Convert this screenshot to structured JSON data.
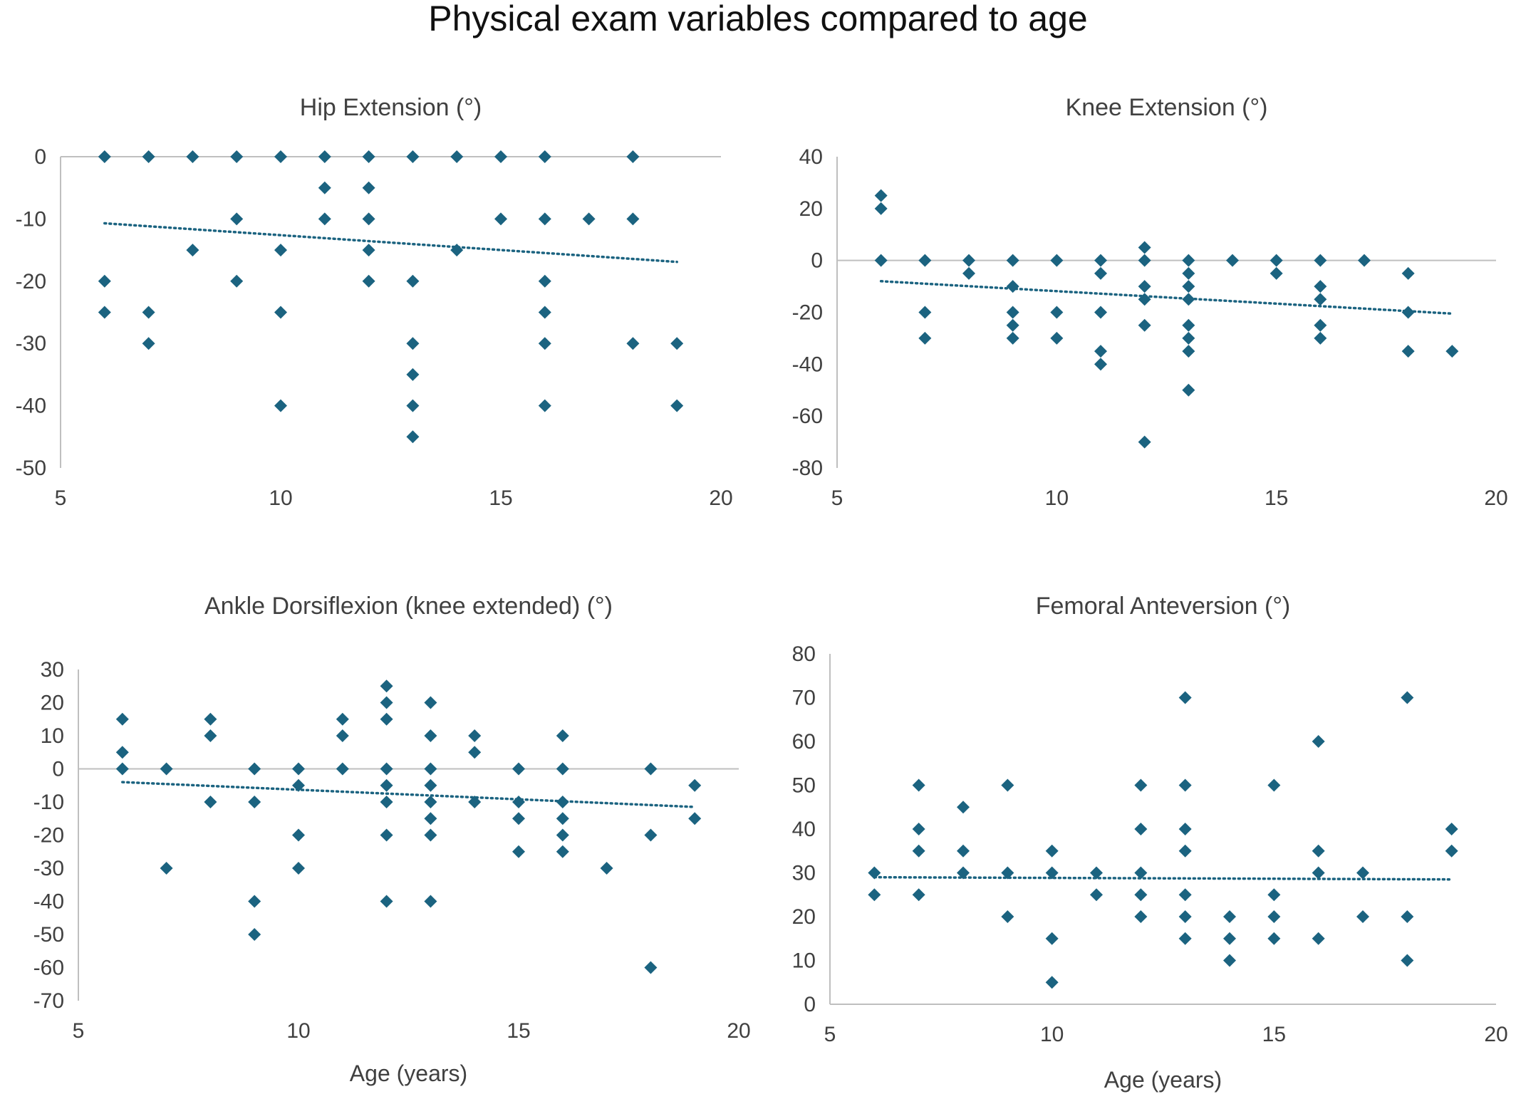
{
  "title": "Physical exam variables compared to age",
  "colors": {
    "marker": "#1b6380",
    "axis": "#bfbfbf",
    "text": "#404040"
  },
  "chart_data": [
    {
      "type": "scatter",
      "title": "Hip Extension (°)",
      "xlabel": "",
      "xlim": [
        5,
        20
      ],
      "xticks": [
        5,
        10,
        15,
        20
      ],
      "ylim": [
        -50,
        0
      ],
      "yticks": [
        0,
        -10,
        -20,
        -30,
        -40,
        -50
      ],
      "trendline": {
        "type": "linear",
        "x": [
          6,
          19
        ],
        "y": [
          -10.7,
          -16.9
        ]
      },
      "points": [
        [
          6,
          0
        ],
        [
          7,
          0
        ],
        [
          8,
          0
        ],
        [
          9,
          0
        ],
        [
          10,
          0
        ],
        [
          11,
          0
        ],
        [
          12,
          0
        ],
        [
          13,
          0
        ],
        [
          14,
          0
        ],
        [
          15,
          0
        ],
        [
          16,
          0
        ],
        [
          18,
          0
        ],
        [
          11,
          -5
        ],
        [
          12,
          -5
        ],
        [
          9,
          -10
        ],
        [
          11,
          -10
        ],
        [
          12,
          -10
        ],
        [
          15,
          -10
        ],
        [
          16,
          -10
        ],
        [
          17,
          -10
        ],
        [
          18,
          -10
        ],
        [
          8,
          -15
        ],
        [
          10,
          -15
        ],
        [
          12,
          -15
        ],
        [
          14,
          -15
        ],
        [
          6,
          -20
        ],
        [
          9,
          -20
        ],
        [
          12,
          -20
        ],
        [
          13,
          -20
        ],
        [
          16,
          -20
        ],
        [
          6,
          -25
        ],
        [
          7,
          -25
        ],
        [
          10,
          -25
        ],
        [
          16,
          -25
        ],
        [
          7,
          -30
        ],
        [
          13,
          -30
        ],
        [
          16,
          -30
        ],
        [
          18,
          -30
        ],
        [
          19,
          -30
        ],
        [
          13,
          -35
        ],
        [
          10,
          -40
        ],
        [
          13,
          -40
        ],
        [
          16,
          -40
        ],
        [
          19,
          -40
        ],
        [
          13,
          -45
        ]
      ]
    },
    {
      "type": "scatter",
      "title": "Knee Extension (°)",
      "xlabel": "",
      "xlim": [
        5,
        20
      ],
      "xticks": [
        5,
        10,
        15,
        20
      ],
      "ylim": [
        -80,
        40
      ],
      "yticks": [
        40,
        20,
        0,
        -20,
        -40,
        -60,
        -80
      ],
      "trendline": {
        "type": "linear",
        "x": [
          6,
          19
        ],
        "y": [
          -8,
          -20.5
        ]
      },
      "points": [
        [
          6,
          25
        ],
        [
          6,
          20
        ],
        [
          6,
          0
        ],
        [
          7,
          0
        ],
        [
          7,
          -20
        ],
        [
          7,
          -30
        ],
        [
          8,
          0
        ],
        [
          8,
          -5
        ],
        [
          9,
          0
        ],
        [
          9,
          -10
        ],
        [
          9,
          -20
        ],
        [
          9,
          -25
        ],
        [
          9,
          -30
        ],
        [
          10,
          0
        ],
        [
          10,
          -20
        ],
        [
          10,
          -30
        ],
        [
          11,
          0
        ],
        [
          11,
          -5
        ],
        [
          11,
          -20
        ],
        [
          11,
          -35
        ],
        [
          11,
          -40
        ],
        [
          12,
          5
        ],
        [
          12,
          0
        ],
        [
          12,
          -10
        ],
        [
          12,
          -15
        ],
        [
          12,
          -25
        ],
        [
          12,
          -70
        ],
        [
          13,
          0
        ],
        [
          13,
          -5
        ],
        [
          13,
          -10
        ],
        [
          13,
          -15
        ],
        [
          13,
          -25
        ],
        [
          13,
          -30
        ],
        [
          13,
          -35
        ],
        [
          13,
          -50
        ],
        [
          14,
          0
        ],
        [
          15,
          0
        ],
        [
          15,
          -5
        ],
        [
          16,
          0
        ],
        [
          16,
          -10
        ],
        [
          16,
          -15
        ],
        [
          16,
          -25
        ],
        [
          16,
          -30
        ],
        [
          17,
          0
        ],
        [
          18,
          -5
        ],
        [
          18,
          -20
        ],
        [
          18,
          -35
        ],
        [
          19,
          -35
        ]
      ]
    },
    {
      "type": "scatter",
      "title": "Ankle Dorsiflexion (knee extended) (°)",
      "xlabel": "Age (years)",
      "xlim": [
        5,
        20
      ],
      "xticks": [
        5,
        10,
        15,
        20
      ],
      "ylim": [
        -70,
        30
      ],
      "yticks": [
        30,
        20,
        10,
        0,
        -10,
        -20,
        -30,
        -40,
        -50,
        -60,
        -70
      ],
      "trendline": {
        "type": "linear",
        "x": [
          6,
          19
        ],
        "y": [
          -4,
          -11.5
        ]
      },
      "points": [
        [
          6,
          15
        ],
        [
          6,
          5
        ],
        [
          6,
          0
        ],
        [
          7,
          0
        ],
        [
          7,
          -30
        ],
        [
          8,
          15
        ],
        [
          8,
          10
        ],
        [
          8,
          -10
        ],
        [
          9,
          0
        ],
        [
          9,
          -10
        ],
        [
          9,
          -40
        ],
        [
          9,
          -50
        ],
        [
          10,
          0
        ],
        [
          10,
          -5
        ],
        [
          10,
          -20
        ],
        [
          10,
          -30
        ],
        [
          11,
          15
        ],
        [
          11,
          10
        ],
        [
          11,
          0
        ],
        [
          12,
          25
        ],
        [
          12,
          20
        ],
        [
          12,
          15
        ],
        [
          12,
          0
        ],
        [
          12,
          -5
        ],
        [
          12,
          -10
        ],
        [
          12,
          -20
        ],
        [
          12,
          -40
        ],
        [
          13,
          20
        ],
        [
          13,
          10
        ],
        [
          13,
          0
        ],
        [
          13,
          -5
        ],
        [
          13,
          -10
        ],
        [
          13,
          -15
        ],
        [
          13,
          -20
        ],
        [
          13,
          -40
        ],
        [
          14,
          10
        ],
        [
          14,
          5
        ],
        [
          14,
          -10
        ],
        [
          15,
          0
        ],
        [
          15,
          -10
        ],
        [
          15,
          -15
        ],
        [
          15,
          -25
        ],
        [
          16,
          10
        ],
        [
          16,
          0
        ],
        [
          16,
          -10
        ],
        [
          16,
          -15
        ],
        [
          16,
          -20
        ],
        [
          16,
          -25
        ],
        [
          17,
          -30
        ],
        [
          18,
          0
        ],
        [
          18,
          -20
        ],
        [
          18,
          -60
        ],
        [
          19,
          -5
        ],
        [
          19,
          -15
        ]
      ]
    },
    {
      "type": "scatter",
      "title": "Femoral Anteversion (°)",
      "xlabel": "Age (years)",
      "xlim": [
        5,
        20
      ],
      "xticks": [
        5,
        10,
        15,
        20
      ],
      "ylim": [
        0,
        80
      ],
      "yticks": [
        80,
        70,
        60,
        50,
        40,
        30,
        20,
        10,
        0
      ],
      "trendline": {
        "type": "linear",
        "x": [
          6,
          19
        ],
        "y": [
          29,
          28.5
        ]
      },
      "points": [
        [
          6,
          30
        ],
        [
          6,
          25
        ],
        [
          7,
          50
        ],
        [
          7,
          40
        ],
        [
          7,
          35
        ],
        [
          7,
          25
        ],
        [
          8,
          45
        ],
        [
          8,
          35
        ],
        [
          8,
          30
        ],
        [
          9,
          50
        ],
        [
          9,
          30
        ],
        [
          9,
          20
        ],
        [
          10,
          35
        ],
        [
          10,
          30
        ],
        [
          10,
          15
        ],
        [
          10,
          5
        ],
        [
          11,
          30
        ],
        [
          11,
          25
        ],
        [
          12,
          50
        ],
        [
          12,
          40
        ],
        [
          12,
          30
        ],
        [
          12,
          25
        ],
        [
          12,
          20
        ],
        [
          13,
          70
        ],
        [
          13,
          50
        ],
        [
          13,
          40
        ],
        [
          13,
          35
        ],
        [
          13,
          25
        ],
        [
          13,
          20
        ],
        [
          13,
          15
        ],
        [
          14,
          20
        ],
        [
          14,
          15
        ],
        [
          14,
          10
        ],
        [
          15,
          50
        ],
        [
          15,
          25
        ],
        [
          15,
          20
        ],
        [
          15,
          15
        ],
        [
          16,
          60
        ],
        [
          16,
          35
        ],
        [
          16,
          30
        ],
        [
          16,
          15
        ],
        [
          17,
          30
        ],
        [
          17,
          20
        ],
        [
          18,
          70
        ],
        [
          18,
          20
        ],
        [
          18,
          10
        ],
        [
          19,
          40
        ],
        [
          19,
          35
        ]
      ]
    }
  ]
}
